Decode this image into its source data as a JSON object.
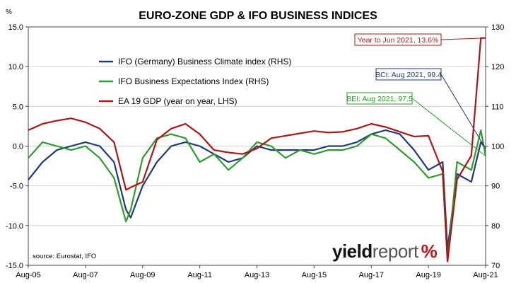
{
  "chart_data": {
    "type": "line",
    "title": "EURO-ZONE GDP & IFO BUSINESS INDICES",
    "left_axis": {
      "unit": "%",
      "ylim": [
        -15,
        15
      ],
      "ticks": [
        "15.0",
        "10.0",
        "5.0",
        "0.0",
        "-5.0",
        "-10.0",
        "-15.0"
      ]
    },
    "right_axis": {
      "ylim": [
        70,
        130
      ],
      "ticks": [
        "130",
        "120",
        "110",
        "100",
        "90",
        "80",
        "70"
      ]
    },
    "x_ticks": [
      "Aug-05",
      "Aug-07",
      "Aug-09",
      "Aug-11",
      "Aug-13",
      "Aug-15",
      "Aug-17",
      "Aug-19",
      "Aug-21"
    ],
    "x_range": [
      "Aug-05",
      "Aug-21"
    ],
    "grid": true,
    "legend_position": "top-left",
    "series": [
      {
        "name": "IFO (Germany) Business Climate index (RHS)",
        "axis": "right",
        "color": "#1f3a7a",
        "x": [
          "Aug-05",
          "Feb-06",
          "Aug-06",
          "Feb-07",
          "Aug-07",
          "Feb-08",
          "Aug-08",
          "Jan-09",
          "Mar-09",
          "Aug-09",
          "Feb-10",
          "Aug-10",
          "Feb-11",
          "Aug-11",
          "Feb-12",
          "Aug-12",
          "Feb-13",
          "Aug-13",
          "Feb-14",
          "Aug-14",
          "Feb-15",
          "Aug-15",
          "Feb-16",
          "Aug-16",
          "Feb-17",
          "Aug-17",
          "Feb-18",
          "Aug-18",
          "Feb-19",
          "Aug-19",
          "Feb-20",
          "Apr-20",
          "Aug-20",
          "Feb-21",
          "Jun-21",
          "Aug-21"
        ],
        "values": [
          91.5,
          96,
          99,
          100,
          101,
          100,
          96,
          84,
          82,
          90,
          96,
          100,
          101,
          100,
          98,
          96,
          97,
          100,
          99,
          99,
          99,
          99,
          100,
          100,
          101,
          103,
          104,
          103,
          99,
          94,
          96,
          74,
          93,
          91,
          101,
          99.4
        ]
      },
      {
        "name": "IFO Business Expectations Index (RHS)",
        "axis": "right",
        "color": "#2e9b2e",
        "x": [
          "Aug-05",
          "Feb-06",
          "Aug-06",
          "Feb-07",
          "Aug-07",
          "Feb-08",
          "Aug-08",
          "Jan-09",
          "Mar-09",
          "Aug-09",
          "Feb-10",
          "Aug-10",
          "Feb-11",
          "Aug-11",
          "Feb-12",
          "Aug-12",
          "Feb-13",
          "Aug-13",
          "Feb-14",
          "Aug-14",
          "Feb-15",
          "Aug-15",
          "Feb-16",
          "Aug-16",
          "Feb-17",
          "Aug-17",
          "Feb-18",
          "Aug-18",
          "Feb-19",
          "Aug-19",
          "Feb-20",
          "Apr-20",
          "Aug-20",
          "Feb-21",
          "Jun-21",
          "Aug-21"
        ],
        "values": [
          97,
          101,
          100,
          99,
          100,
          97,
          92,
          81,
          84,
          97,
          102,
          103,
          102,
          96,
          98,
          94,
          97,
          101,
          100,
          97,
          99,
          98,
          99,
          99,
          100,
          103,
          102,
          99,
          96,
          92,
          93,
          71,
          96,
          94,
          104,
          97.5
        ]
      },
      {
        "name": "EA 19 GDP (year on year, LHS)",
        "axis": "left",
        "color": "#b01515",
        "x": [
          "Aug-05",
          "Feb-06",
          "Aug-06",
          "Feb-07",
          "Aug-07",
          "Feb-08",
          "Aug-08",
          "Jan-09",
          "Mar-09",
          "Aug-09",
          "Feb-10",
          "Aug-10",
          "Feb-11",
          "Aug-11",
          "Feb-12",
          "Aug-12",
          "Feb-13",
          "Aug-13",
          "Feb-14",
          "Aug-14",
          "Feb-15",
          "Aug-15",
          "Feb-16",
          "Aug-16",
          "Feb-17",
          "Aug-17",
          "Feb-18",
          "Aug-18",
          "Feb-19",
          "Aug-19",
          "Feb-20",
          "Apr-20",
          "Aug-20",
          "Feb-21",
          "Jun-21",
          "Aug-21"
        ],
        "values": [
          2.0,
          2.8,
          3.2,
          3.5,
          3.0,
          2.2,
          0.5,
          -5.5,
          -5.2,
          -4.5,
          0.8,
          2.2,
          2.8,
          1.5,
          -0.5,
          -0.8,
          -1.0,
          -0.3,
          1.0,
          1.3,
          1.6,
          1.9,
          1.7,
          1.8,
          2.2,
          2.8,
          2.4,
          1.8,
          1.2,
          1.3,
          -3.2,
          -14.5,
          -4.2,
          -1.2,
          13.6,
          13.6
        ]
      }
    ],
    "annotations": [
      {
        "text": "Year to Jun 2021, 13.6%",
        "series": "EA 19 GDP (year on year, LHS)",
        "color": "#b01515"
      },
      {
        "text": "BCI: Aug 2021, 99.4",
        "series": "IFO (Germany) Business Climate index (RHS)",
        "color": "#1f3a7a"
      },
      {
        "text": "BEI: Aug 2021, 97.5",
        "series": "IFO Business Expectations Index (RHS)",
        "color": "#2e9b2e"
      }
    ],
    "source": "source: Eurostat, IFO"
  },
  "logo": {
    "word1": "yield",
    "word2": "report",
    "symbol": "%"
  }
}
